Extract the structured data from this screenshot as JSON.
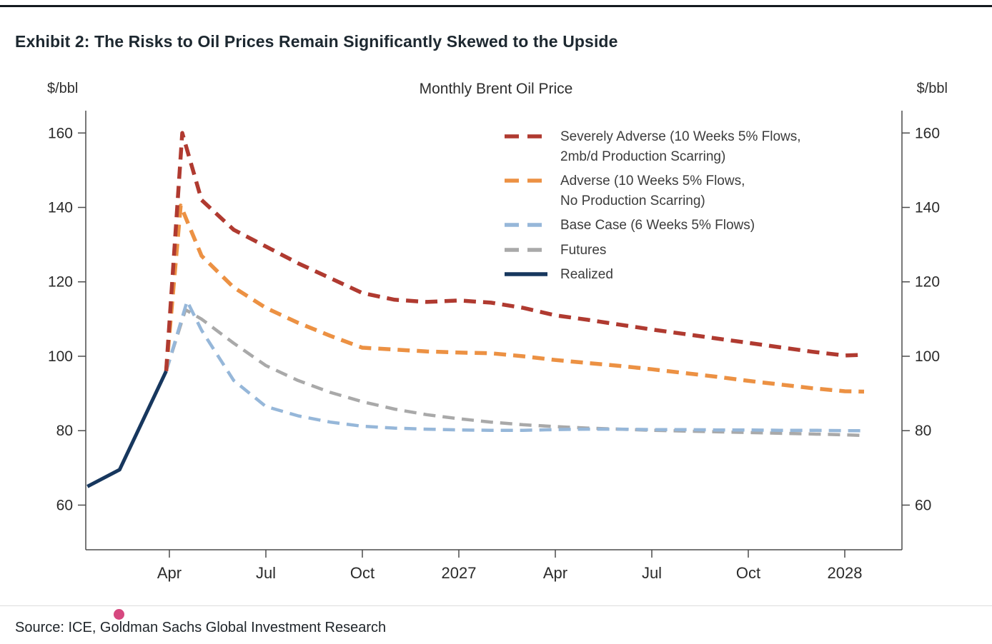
{
  "page": {
    "exhibit_title": "Exhibit 2: The Risks to Oil Prices Remain Significantly Skewed to the Upside"
  },
  "chart_data": {
    "type": "line",
    "title": "Monthly Brent Oil Price",
    "y_axis_label_left": "$/bbl",
    "y_axis_label_right": "$/bbl",
    "ylim": [
      48,
      166
    ],
    "y_ticks": [
      160,
      140,
      120,
      100,
      80,
      60
    ],
    "x_ticks": [
      {
        "label": "Apr",
        "pos": 2
      },
      {
        "label": "Jul",
        "pos": 5
      },
      {
        "label": "Oct",
        "pos": 8
      },
      {
        "label": "2027",
        "pos": 11
      },
      {
        "label": "Apr",
        "pos": 14
      },
      {
        "label": "Jul",
        "pos": 17
      },
      {
        "label": "Oct",
        "pos": 20
      },
      {
        "label": "2028",
        "pos": 23
      }
    ],
    "series": [
      {
        "id": "severely-adverse",
        "name": "Severely Adverse (10 Weeks 5% Flows,\n2mb/d Production Scarring)",
        "color": "#b03a30",
        "style": "dashed",
        "x": [
          1.9,
          2.4,
          3,
          4,
          5,
          6,
          7,
          8,
          9,
          10,
          11,
          12,
          13,
          14,
          15,
          16,
          17,
          18,
          19,
          20,
          21,
          22,
          23,
          23.6
        ],
        "y": [
          96,
          160,
          142,
          134,
          129.5,
          125,
          121,
          117,
          115.2,
          114.6,
          115,
          114.4,
          113,
          111,
          109.8,
          108.5,
          107.2,
          106,
          104.8,
          103.6,
          102.4,
          101.2,
          100.2,
          100.4
        ]
      },
      {
        "id": "adverse",
        "name": "Adverse (10 Weeks 5% Flows,\nNo Production Scarring)",
        "color": "#ec9143",
        "style": "dashed",
        "x": [
          1.9,
          2.35,
          3,
          4,
          5,
          6,
          7,
          8,
          9,
          10,
          11,
          12,
          13,
          14,
          15,
          16,
          17,
          18,
          19,
          20,
          21,
          22,
          23,
          23.6
        ],
        "y": [
          96,
          140.5,
          127,
          118.5,
          113,
          109,
          105.5,
          102.3,
          101.8,
          101.3,
          101,
          100.8,
          100,
          99,
          98.2,
          97.4,
          96.5,
          95.5,
          94.5,
          93.4,
          92.4,
          91.4,
          90.6,
          90.5
        ]
      },
      {
        "id": "base-case",
        "name": "Base Case (6 Weeks 5% Flows)",
        "color": "#96b7d9",
        "style": "dashed",
        "x": [
          1.9,
          2.55,
          3,
          4,
          5,
          6,
          7,
          8,
          9,
          10,
          11,
          12,
          13,
          14,
          15,
          16,
          17,
          18,
          19,
          20,
          21,
          22,
          23,
          23.6
        ],
        "y": [
          96,
          114.8,
          107,
          93.5,
          86.5,
          84,
          82.3,
          81.2,
          80.7,
          80.4,
          80.2,
          80.1,
          80.1,
          80.3,
          80.4,
          80.4,
          80.3,
          80.3,
          80.2,
          80.2,
          80.1,
          80.1,
          80,
          80
        ]
      },
      {
        "id": "futures",
        "name": "Futures",
        "color": "#a9a9a9",
        "style": "dashed",
        "x": [
          1.9,
          2.5,
          3,
          4,
          5,
          6,
          7,
          8,
          9,
          10,
          11,
          12,
          13,
          14,
          15,
          16,
          17,
          18,
          19,
          20,
          21,
          22,
          23,
          23.6
        ],
        "y": [
          96,
          112.5,
          110,
          103.5,
          97.5,
          93.5,
          90.3,
          87.8,
          85.8,
          84.3,
          83.2,
          82.3,
          81.6,
          81.1,
          80.7,
          80.4,
          80.1,
          79.9,
          79.7,
          79.5,
          79.3,
          79.1,
          78.9,
          78.7
        ]
      },
      {
        "id": "realized",
        "name": "Realized",
        "color": "#17375e",
        "style": "solid",
        "x": [
          -0.55,
          0.45,
          1.9
        ],
        "y": [
          65,
          69.5,
          96
        ]
      }
    ]
  },
  "footer": {
    "source": "Source: ICE, Goldman Sachs Global Investment Research",
    "dot_color": "#d6487f"
  }
}
